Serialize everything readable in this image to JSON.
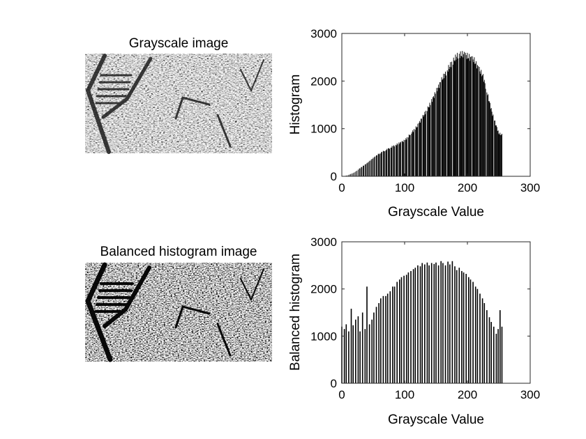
{
  "figure": {
    "background": "#ffffff",
    "bar_color": "#000000"
  },
  "panels": {
    "image_top": {
      "title": "Grayscale image",
      "content": "grayscale photograph of a ground surface with diagonal ladder-like structure"
    },
    "image_bottom": {
      "title": "Balanced histogram image",
      "content": "histogram-equalized version of the same photograph with higher contrast"
    }
  },
  "chart_data": [
    {
      "type": "bar",
      "title": "",
      "xlabel": "Grayscale Value",
      "ylabel": "Histogram",
      "xlim": [
        0,
        300
      ],
      "ylim": [
        0,
        3000
      ],
      "xticks": [
        "0",
        "100",
        "200",
        "300"
      ],
      "yticks": [
        "0",
        "1000",
        "2000",
        "3000"
      ],
      "grid": false,
      "legend": "none",
      "bins": "one bar per grayscale level, 0-255",
      "profile_x": [
        0,
        10,
        20,
        40,
        60,
        80,
        100,
        120,
        140,
        160,
        175,
        185,
        195,
        200,
        210,
        225,
        240,
        250,
        255
      ],
      "profile_y": [
        0,
        25,
        80,
        280,
        480,
        620,
        750,
        1050,
        1500,
        2050,
        2380,
        2550,
        2560,
        2520,
        2450,
        2100,
        1300,
        900,
        870
      ],
      "zero_bars": [
        1,
        2,
        3,
        4,
        5,
        6,
        8,
        9,
        11,
        13,
        15,
        17,
        19,
        21,
        23,
        25,
        27,
        30,
        33,
        36,
        39,
        42,
        45,
        48,
        51,
        54,
        57,
        61,
        65,
        69,
        73,
        77,
        81,
        85,
        90,
        95,
        100,
        105,
        110,
        116,
        122,
        128,
        135,
        142,
        150,
        158,
        167,
        176,
        186,
        196,
        207,
        218,
        230,
        242
      ]
    },
    {
      "type": "bar",
      "title": "",
      "xlabel": "Grayscale Value",
      "ylabel": "Balanced histogram",
      "xlim": [
        0,
        300
      ],
      "ylim": [
        0,
        3000
      ],
      "xticks": [
        "0",
        "100",
        "200",
        "300"
      ],
      "yticks": [
        "0",
        "1000",
        "2000",
        "3000"
      ],
      "grid": false,
      "legend": "none",
      "bins": "sparse bars after histogram equalization",
      "x": [
        0,
        4,
        7,
        11,
        15,
        18,
        22,
        26,
        29,
        33,
        37,
        40,
        44,
        48,
        51,
        55,
        59,
        62,
        66,
        70,
        73,
        77,
        81,
        84,
        88,
        92,
        95,
        99,
        103,
        106,
        110,
        114,
        117,
        121,
        125,
        128,
        132,
        136,
        139,
        143,
        147,
        150,
        154,
        158,
        161,
        165,
        169,
        172,
        176,
        180,
        183,
        187,
        191,
        194,
        198,
        202,
        205,
        209,
        213,
        216,
        220,
        224,
        227,
        231,
        235,
        238,
        242,
        246,
        249,
        252,
        255
      ],
      "values": [
        1200,
        1150,
        1250,
        1100,
        1580,
        1230,
        1350,
        1420,
        1100,
        1500,
        1150,
        2050,
        1250,
        1350,
        1500,
        1620,
        1700,
        1800,
        1850,
        1850,
        1900,
        1950,
        2050,
        2050,
        2150,
        2200,
        2250,
        2280,
        2300,
        2350,
        2380,
        2420,
        2450,
        2500,
        2480,
        2550,
        2520,
        2560,
        2500,
        2550,
        2530,
        2560,
        2500,
        2590,
        2550,
        2500,
        2580,
        2520,
        2590,
        2480,
        2400,
        2450,
        2380,
        2350,
        2320,
        2250,
        2200,
        2150,
        2050,
        2000,
        1900,
        1800,
        1700,
        1550,
        1400,
        1300,
        1200,
        1050,
        1150,
        1550,
        1200
      ]
    }
  ]
}
